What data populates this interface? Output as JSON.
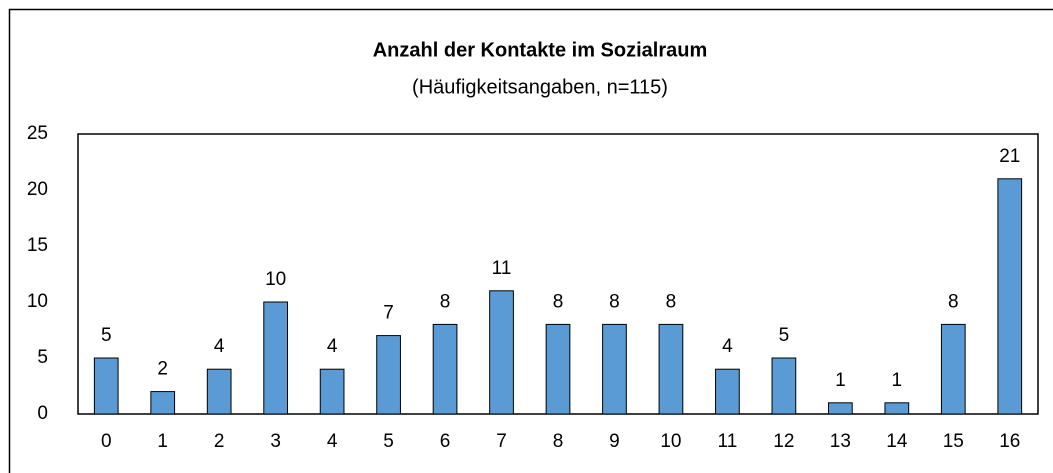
{
  "chart_data": {
    "type": "bar",
    "title": "Anzahl der Kontakte im Sozialraum",
    "subtitle": "(Häufigkeitsangaben, n=115)",
    "categories": [
      "0",
      "1",
      "2",
      "3",
      "4",
      "5",
      "6",
      "7",
      "8",
      "9",
      "10",
      "11",
      "12",
      "13",
      "14",
      "15",
      "16"
    ],
    "values": [
      5,
      2,
      4,
      10,
      4,
      7,
      8,
      11,
      8,
      8,
      8,
      4,
      5,
      1,
      1,
      8,
      21
    ],
    "color": "#5b9bd5",
    "ylim": [
      0,
      25
    ],
    "yticks": [
      0,
      5,
      10,
      15,
      20,
      25
    ],
    "grid": false
  }
}
